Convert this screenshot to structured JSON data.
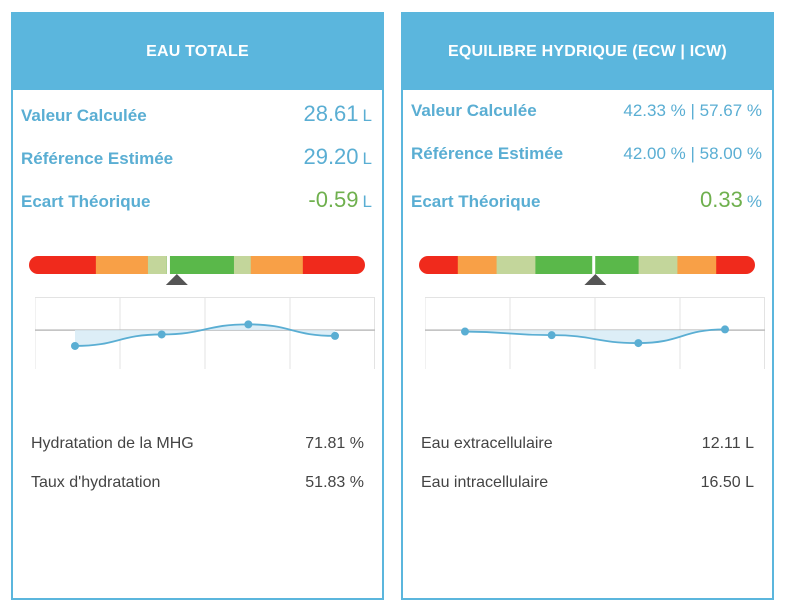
{
  "left": {
    "title": "EAU TOTALE",
    "rows": [
      {
        "label": "Valeur Calculée",
        "value": "28.61",
        "unit": "L"
      },
      {
        "label": "Référence Estimée",
        "value": "29.20",
        "unit": "L"
      },
      {
        "label": "Ecart Théorique",
        "value": "-0.59",
        "unit": "L"
      }
    ],
    "gauge": {
      "segments": [
        {
          "color": "#f02a1c",
          "weight": 19.9
        },
        {
          "color": "#f8a047",
          "weight": 15.5
        },
        {
          "color": "#c3d69b",
          "weight": 5.6
        },
        {
          "color": "#5ab84a",
          "weight": 20.0
        },
        {
          "color": "#c3d69b",
          "weight": 5.0
        },
        {
          "color": "#f8a047",
          "weight": 15.5
        },
        {
          "color": "#f02a1c",
          "weight": 18.5
        }
      ],
      "value_marker": 0.44,
      "reference_marker": 0.415
    },
    "trend": [
      0.32,
      0.48,
      0.62,
      0.46
    ],
    "info": [
      {
        "label": "Hydratation de la MHG",
        "value": "71.81 %"
      },
      {
        "label": "Taux d'hydratation",
        "value": "51.83 %"
      }
    ]
  },
  "right": {
    "title": "EQUILIBRE HYDRIQUE (ECW | ICW)",
    "rows": [
      {
        "label": "Valeur Calculée",
        "value": "42.33 % | 57.67 %",
        "unit": ""
      },
      {
        "label": "Référence Estimée",
        "value": "42.00 % | 58.00 %",
        "unit": ""
      },
      {
        "label": "Ecart Théorique",
        "value": "0.33",
        "unit": "%"
      }
    ],
    "gauge": {
      "segments": [
        {
          "color": "#f02a1c",
          "weight": 10.6
        },
        {
          "color": "#f8a047",
          "weight": 10.6
        },
        {
          "color": "#c3d69b",
          "weight": 10.6
        },
        {
          "color": "#5ab84a",
          "weight": 20.0
        },
        {
          "color": "#5ab84a",
          "weight": 8.2
        },
        {
          "color": "#c3d69b",
          "weight": 10.6
        },
        {
          "color": "#f8a047",
          "weight": 10.6
        },
        {
          "color": "#f02a1c",
          "weight": 10.6
        }
      ],
      "value_marker": 0.525,
      "reference_marker": 0.52
    },
    "trend": [
      0.52,
      0.47,
      0.36,
      0.55
    ],
    "info": [
      {
        "label": "Eau extracellulaire",
        "value": "12.11 L"
      },
      {
        "label": "Eau intracellulaire",
        "value": "16.50 L"
      }
    ]
  },
  "colors": {
    "accent": "#5bb6dd",
    "label_blue": "#5aaed3",
    "positive_green": "#6fb04e",
    "marker": "#555555",
    "trend_line": "#5aaed3"
  }
}
